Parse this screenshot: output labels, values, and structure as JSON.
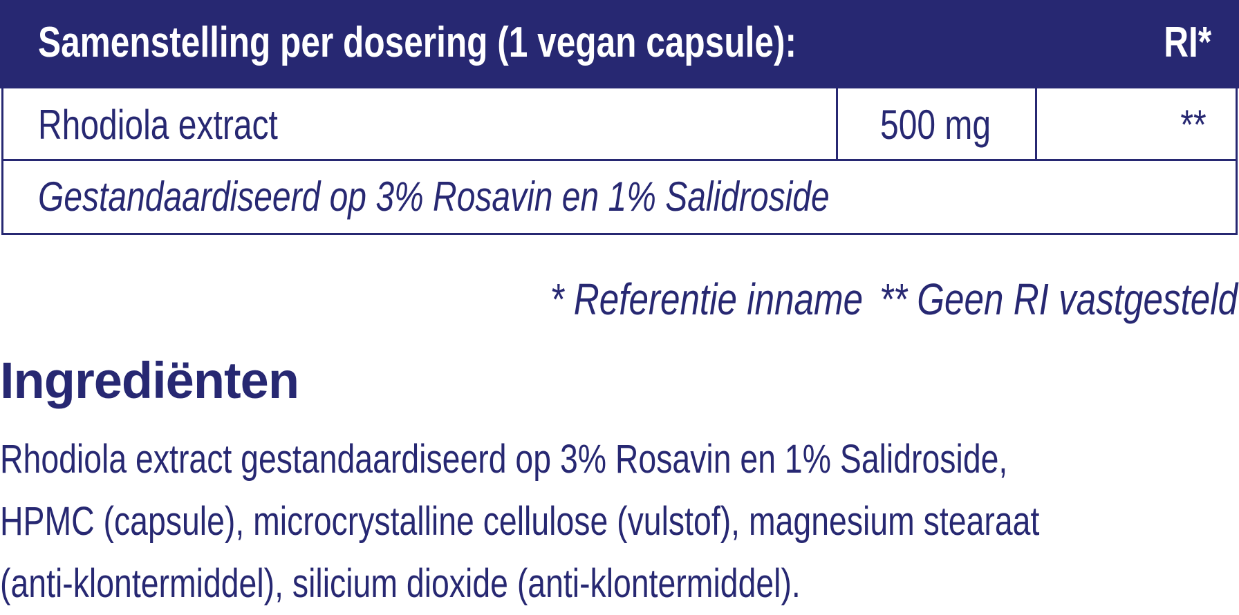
{
  "table": {
    "header": {
      "title": "Samenstelling per dosering (1 vegan capsule):",
      "ri": "RI*"
    },
    "rows": [
      {
        "name": "Rhodiola extract",
        "amount": "500 mg",
        "ri": "**"
      },
      {
        "note": "Gestandaardiseerd op 3% Rosavin en 1% Salidroside"
      }
    ]
  },
  "footnotes": [
    "* Referentie inname",
    "** Geen RI vastgesteld"
  ],
  "ingredients": {
    "title": "Ingrediënten",
    "lines": [
      "Rhodiola extract gestandaardiseerd op 3% Rosavin en 1% Salidroside,",
      "HPMC (capsule), microcrystalline cellulose (vulstof), magnesium stearaat",
      "(anti-klontermiddel), silicium dioxide (anti-klontermiddel)."
    ]
  },
  "colors": {
    "brand": "#272872",
    "background": "#ffffff"
  }
}
